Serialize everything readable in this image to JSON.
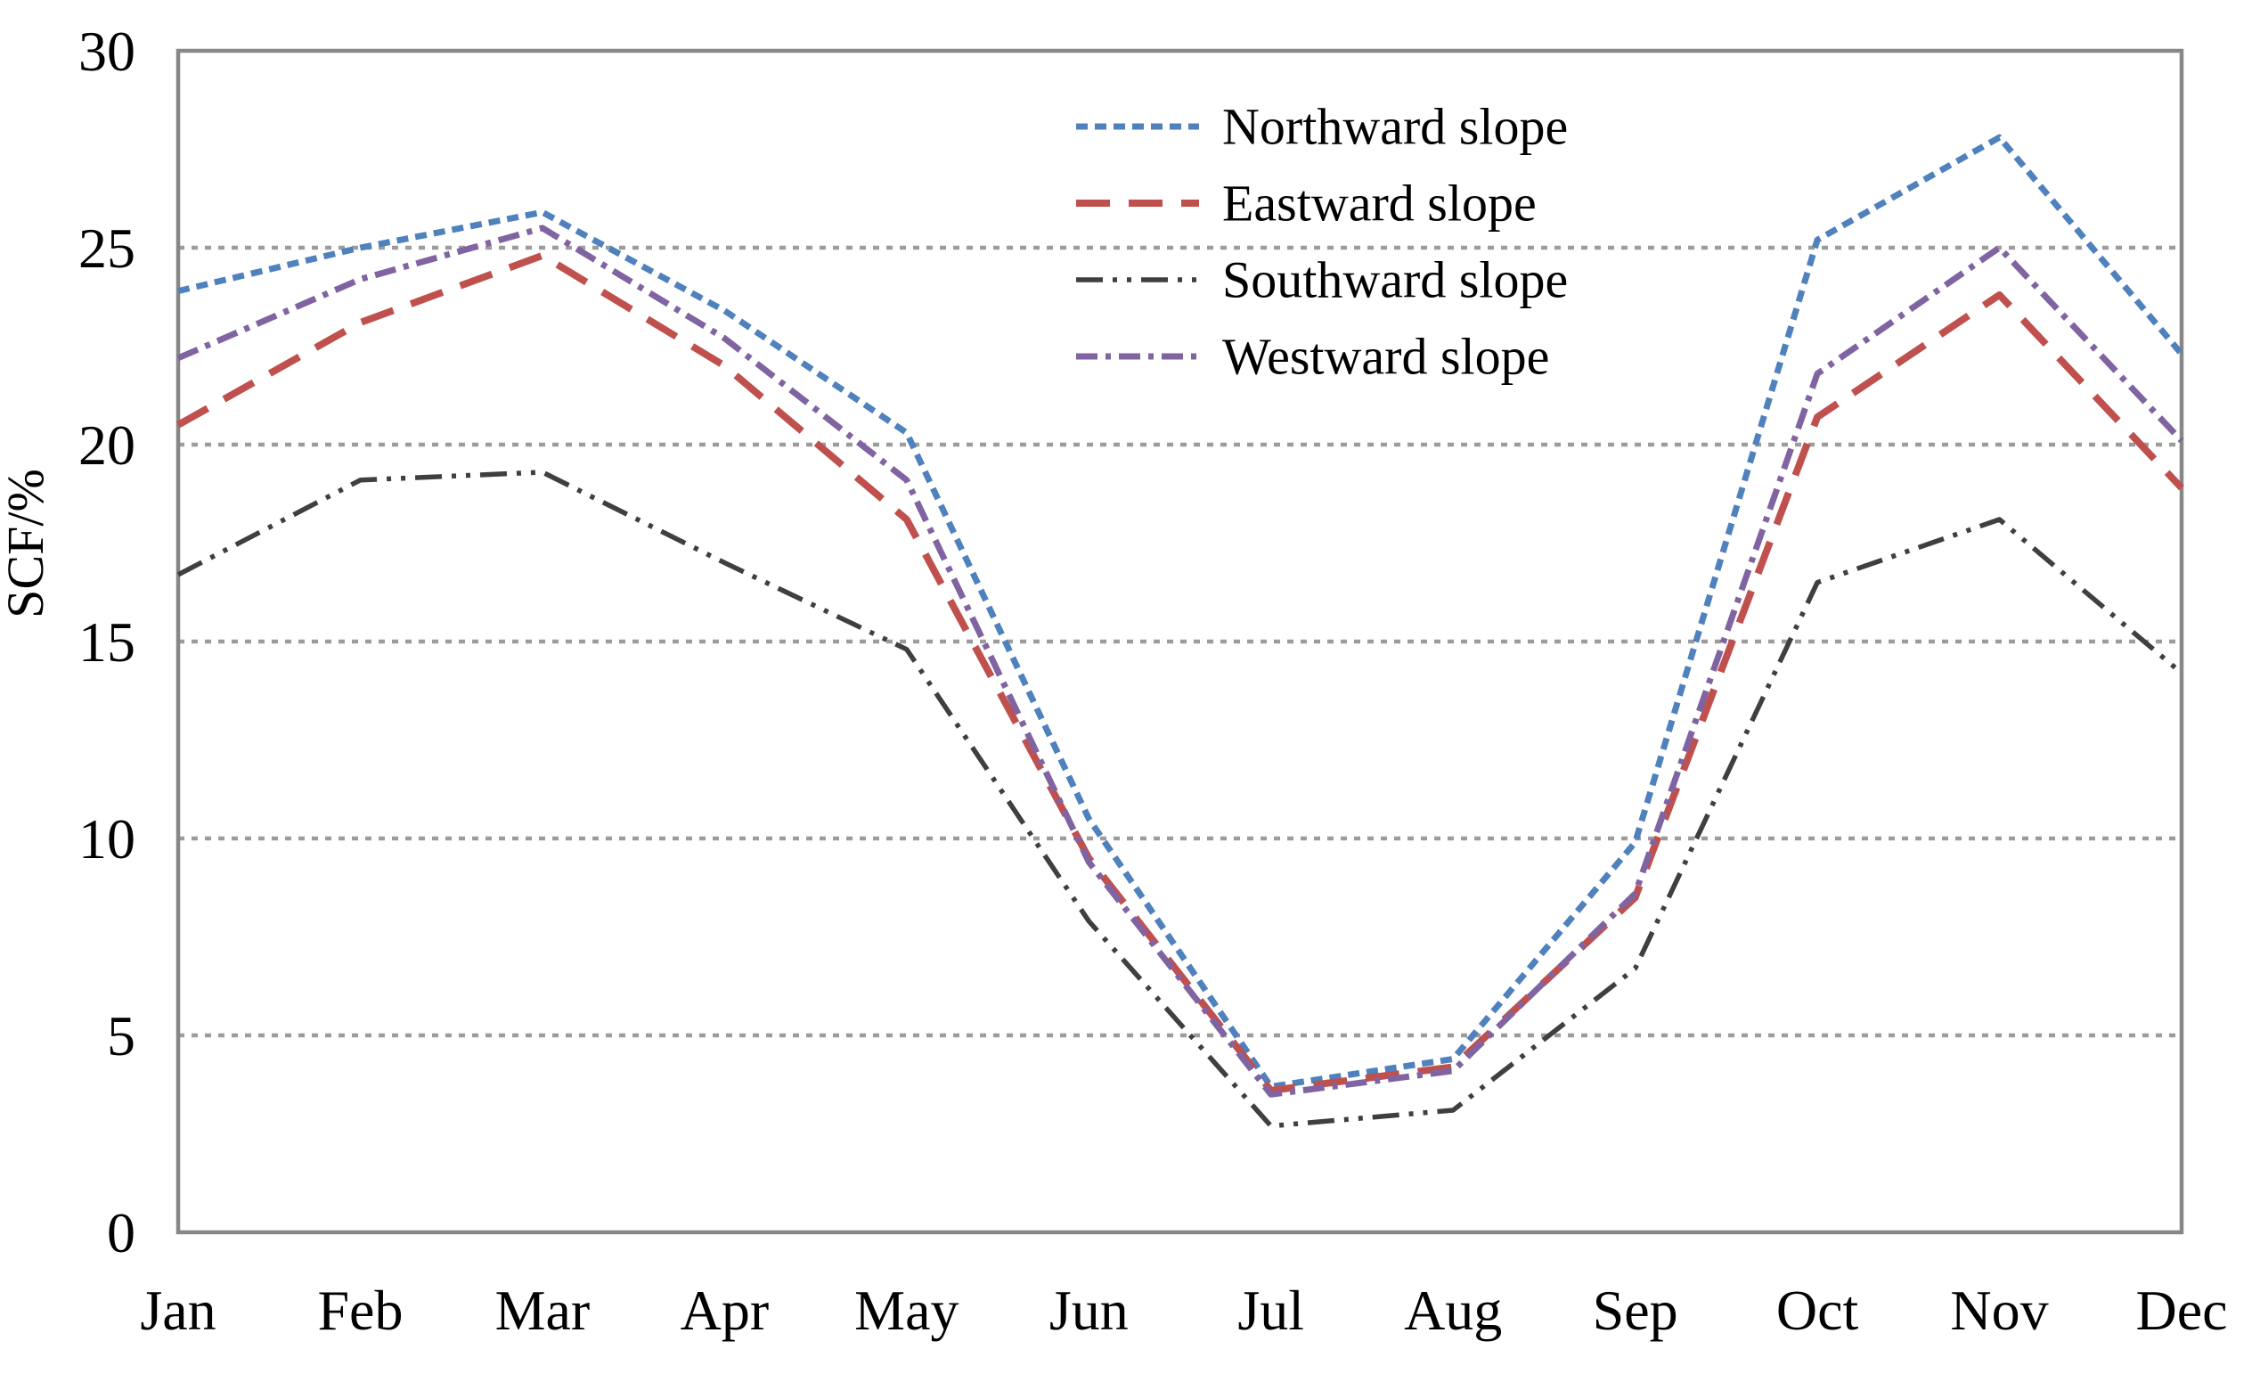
{
  "figure": {
    "background": "#ffffff",
    "border_color": "#878787",
    "gridline_color": "#9C9C9C",
    "text_color": "#000000"
  },
  "chart_data": {
    "type": "line",
    "title": "",
    "xlabel": "",
    "ylabel": "SCF/%",
    "ylim": [
      0,
      30
    ],
    "ytick_step": 5,
    "y_ticks": [
      "0",
      "5",
      "10",
      "15",
      "20",
      "25",
      "30"
    ],
    "grid": true,
    "legend_position": "upper-center-right",
    "categories": [
      "Jan",
      "Feb",
      "Mar",
      "Apr",
      "May",
      "Jun",
      "Jul",
      "Aug",
      "Sep",
      "Oct",
      "Nov",
      "Dec"
    ],
    "series": [
      {
        "name": "Northward slope",
        "color": "#4F81BD",
        "dash": "dotted",
        "values": [
          23.9,
          25.0,
          25.9,
          23.4,
          20.3,
          10.5,
          3.7,
          4.4,
          9.9,
          25.2,
          27.8,
          22.3
        ]
      },
      {
        "name": "Eastward slope",
        "color": "#C0504D",
        "dash": "dashed",
        "values": [
          20.5,
          23.1,
          24.8,
          22.0,
          18.1,
          9.5,
          3.6,
          4.2,
          8.5,
          20.7,
          23.8,
          18.9
        ]
      },
      {
        "name": "Southward slope",
        "color": "#3F3F3F",
        "dash": "dash-dot-dot",
        "values": [
          16.7,
          19.1,
          19.3,
          17.0,
          14.8,
          7.9,
          2.7,
          3.1,
          6.7,
          16.5,
          18.1,
          14.2
        ]
      },
      {
        "name": "Westward slope",
        "color": "#8064A2",
        "dash": "dash-dot",
        "values": [
          22.2,
          24.2,
          25.5,
          22.7,
          19.1,
          9.4,
          3.5,
          4.1,
          8.6,
          21.8,
          25.0,
          20.1
        ]
      }
    ]
  }
}
